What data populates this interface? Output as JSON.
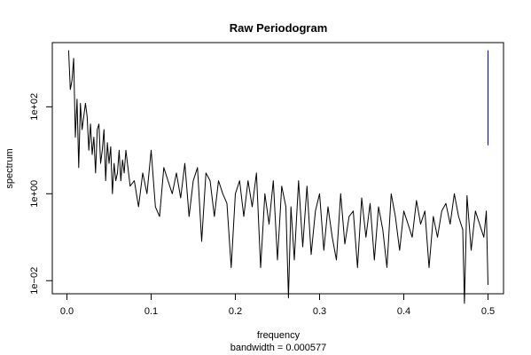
{
  "chart_data": {
    "type": "line",
    "title": "Raw Periodogram",
    "xlabel": "frequency",
    "sublabel": "bandwidth = 0.000577",
    "ylabel": "spectrum",
    "y_scale": "log",
    "xlim": [
      0.0,
      0.5
    ],
    "ylim": [
      0.005,
      3000
    ],
    "x_ticks": [
      {
        "value": 0.0,
        "label": "0.0"
      },
      {
        "value": 0.1,
        "label": "0.1"
      },
      {
        "value": 0.2,
        "label": "0.2"
      },
      {
        "value": 0.3,
        "label": "0.3"
      },
      {
        "value": 0.4,
        "label": "0.4"
      },
      {
        "value": 0.5,
        "label": "0.5"
      }
    ],
    "y_ticks": [
      {
        "value": 100,
        "label": "1e+02"
      },
      {
        "value": 1,
        "label": "1e+00"
      },
      {
        "value": 0.01,
        "label": "1e−02"
      }
    ],
    "series": [
      {
        "color": "#000000",
        "x": [
          0.002,
          0.004,
          0.006,
          0.008,
          0.01,
          0.012,
          0.014,
          0.016,
          0.018,
          0.02,
          0.022,
          0.024,
          0.026,
          0.028,
          0.03,
          0.032,
          0.034,
          0.036,
          0.038,
          0.04,
          0.042,
          0.044,
          0.046,
          0.048,
          0.05,
          0.052,
          0.054,
          0.056,
          0.058,
          0.06,
          0.062,
          0.064,
          0.066,
          0.068,
          0.07,
          0.075,
          0.08,
          0.085,
          0.09,
          0.095,
          0.1,
          0.105,
          0.11,
          0.115,
          0.12,
          0.125,
          0.13,
          0.135,
          0.14,
          0.145,
          0.15,
          0.155,
          0.16,
          0.165,
          0.17,
          0.175,
          0.18,
          0.185,
          0.19,
          0.195,
          0.2,
          0.205,
          0.21,
          0.215,
          0.22,
          0.225,
          0.23,
          0.235,
          0.24,
          0.245,
          0.25,
          0.255,
          0.26,
          0.263,
          0.266,
          0.27,
          0.275,
          0.28,
          0.285,
          0.29,
          0.295,
          0.3,
          0.305,
          0.31,
          0.315,
          0.32,
          0.325,
          0.33,
          0.335,
          0.34,
          0.345,
          0.35,
          0.355,
          0.36,
          0.365,
          0.37,
          0.375,
          0.38,
          0.385,
          0.39,
          0.395,
          0.4,
          0.405,
          0.41,
          0.415,
          0.42,
          0.425,
          0.43,
          0.435,
          0.44,
          0.445,
          0.45,
          0.455,
          0.46,
          0.465,
          0.47,
          0.472,
          0.475,
          0.48,
          0.485,
          0.49,
          0.495,
          0.498,
          0.5
        ],
        "values": [
          2000,
          250,
          400,
          1300,
          20,
          150,
          4,
          120,
          30,
          60,
          120,
          60,
          10,
          40,
          8,
          20,
          3,
          30,
          40,
          5,
          10,
          30,
          2,
          15,
          5,
          12,
          1,
          5,
          2,
          3,
          10,
          2,
          6,
          3,
          10,
          1.5,
          2,
          0.5,
          3,
          1,
          10,
          0.5,
          0.3,
          4,
          2,
          1,
          3,
          0.8,
          5,
          0.3,
          2,
          4,
          0.08,
          3,
          2,
          0.3,
          2,
          1,
          0.6,
          0.02,
          1,
          2,
          0.3,
          2,
          0.5,
          3,
          0.02,
          1,
          0.2,
          2,
          0.03,
          1.5,
          0.5,
          0.004,
          0.5,
          0.03,
          2,
          0.06,
          1.5,
          0.04,
          0.4,
          1,
          0.05,
          0.5,
          0.1,
          0.03,
          1,
          0.07,
          0.3,
          0.4,
          0.02,
          0.8,
          0.1,
          0.6,
          0.03,
          0.5,
          0.15,
          0.02,
          1,
          0.3,
          0.05,
          0.4,
          0.2,
          0.1,
          0.7,
          0.2,
          0.4,
          0.02,
          0.3,
          0.1,
          0.4,
          0.6,
          0.2,
          1,
          0.3,
          0.15,
          0.003,
          0.9,
          0.05,
          0.4,
          0.2,
          0.1,
          0.4,
          0.008
        ]
      },
      {
        "color": "#0000cc",
        "x": [
          0.5,
          0.5
        ],
        "values": [
          2000,
          13
        ]
      }
    ]
  }
}
